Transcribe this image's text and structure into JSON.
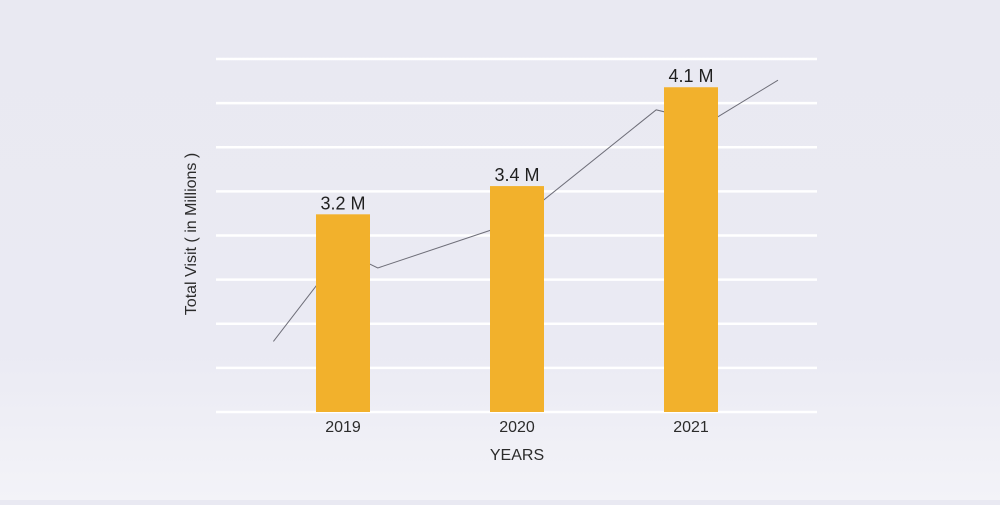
{
  "chart_data": {
    "type": "bar",
    "categories": [
      "2019",
      "2020",
      "2021"
    ],
    "values": [
      3.2,
      3.4,
      4.1
    ],
    "data_labels": [
      "3.2 M",
      "3.4 M",
      "4.1 M"
    ],
    "xlabel": "YEARS",
    "ylabel": "Total Visit ( in Millions )",
    "ylim": [
      1.8,
      4.3
    ],
    "grid": true,
    "trend_line": {
      "x": [
        0.6,
        1.0,
        1.2,
        2.0,
        2.8,
        3.1,
        3.5
      ],
      "y": [
        2.3,
        2.94,
        2.82,
        3.15,
        3.94,
        3.85,
        4.15
      ]
    },
    "colors": {
      "bar": "#f2b12c",
      "grid": "#ffffff",
      "trend": "#6e6e78"
    }
  }
}
